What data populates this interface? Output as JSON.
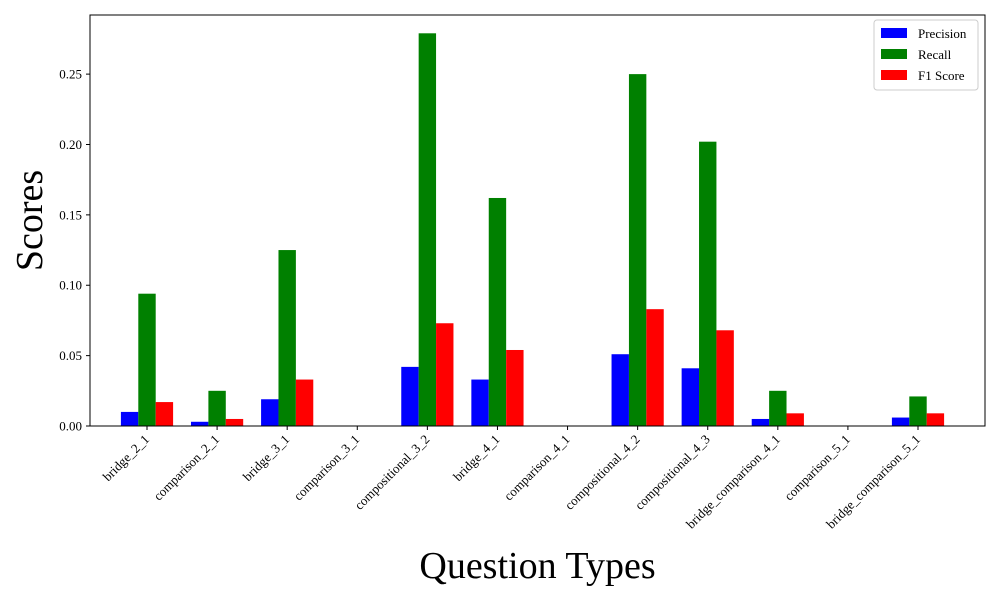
{
  "chart_data": {
    "type": "bar",
    "title": "",
    "xlabel": "Question Types",
    "ylabel": "Scores",
    "ylim": [
      0,
      0.292
    ],
    "yticks": [
      0.0,
      0.05,
      0.1,
      0.15,
      0.2,
      0.25
    ],
    "ytick_labels": [
      "0.00",
      "0.05",
      "0.10",
      "0.15",
      "0.20",
      "0.25"
    ],
    "categories": [
      "bridge_2_1",
      "comparison_2_1",
      "bridge_3_1",
      "comparison_3_1",
      "compositional_3_2",
      "bridge_4_1",
      "comparison_4_1",
      "compositional_4_2",
      "compositional_4_3",
      "bridge_comparison_4_1",
      "comparison_5_1",
      "bridge_comparison_5_1"
    ],
    "series": [
      {
        "name": "Precision",
        "color": "#0000ff",
        "values": [
          0.01,
          0.003,
          0.019,
          0.0,
          0.042,
          0.033,
          0.0,
          0.051,
          0.041,
          0.005,
          0.0,
          0.006
        ]
      },
      {
        "name": "Recall",
        "color": "#008000",
        "values": [
          0.094,
          0.025,
          0.125,
          0.0,
          0.279,
          0.162,
          0.0,
          0.25,
          0.202,
          0.025,
          0.0,
          0.021
        ]
      },
      {
        "name": "F1 Score",
        "color": "#ff0000",
        "values": [
          0.017,
          0.005,
          0.033,
          0.0,
          0.073,
          0.054,
          0.0,
          0.083,
          0.068,
          0.009,
          0.0,
          0.009
        ]
      }
    ],
    "grid": false,
    "legend": "top-right"
  }
}
